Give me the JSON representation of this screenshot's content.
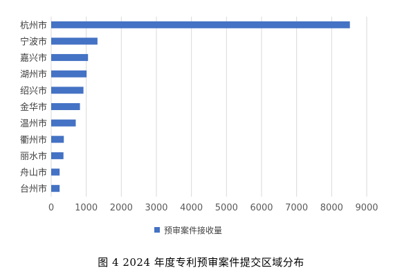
{
  "chart_data": {
    "type": "bar",
    "orientation": "horizontal",
    "categories": [
      "杭州市",
      "宁波市",
      "嘉兴市",
      "湖州市",
      "绍兴市",
      "金华市",
      "温州市",
      "衢州市",
      "丽水市",
      "舟山市",
      "台州市"
    ],
    "series": [
      {
        "name": "预审案件接收量",
        "values": [
          8520,
          1320,
          1050,
          1010,
          920,
          820,
          700,
          360,
          350,
          240,
          240
        ]
      }
    ],
    "xlim": [
      0,
      9000
    ],
    "xticks": [
      "0",
      "1000",
      "2000",
      "3000",
      "4000",
      "5000",
      "6000",
      "7000",
      "8000",
      "9000"
    ],
    "grid": true,
    "legend": "bottom"
  },
  "colors": {
    "bar": "#4472C4",
    "grid": "#D9D9D9"
  },
  "caption": "图 4 2024 年度专利预审案件提交区域分布"
}
